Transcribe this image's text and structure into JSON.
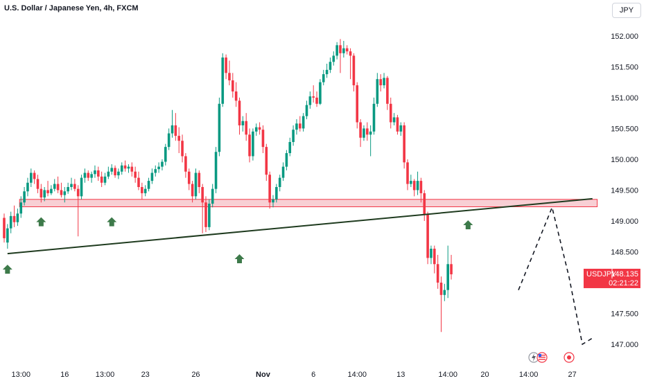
{
  "header": {
    "title": "U.S. Dollar / Japanese Yen, 4h, FXCM",
    "currency_button": "JPY"
  },
  "colors": {
    "up": "#089981",
    "down": "#f23645",
    "zone_fill": "#f7c7cc",
    "zone_stroke": "#f23645",
    "trendline": "#1e3a1e",
    "arrow": "#3d7a4a",
    "price_label_bg": "#f23645"
  },
  "chart_data": {
    "type": "candlestick",
    "title": "U.S. Dollar / Japanese Yen, 4h, FXCM",
    "ylim": [
      146.85,
      152.1
    ],
    "y_ticks": [
      "152.000",
      "151.500",
      "151.000",
      "150.500",
      "150.000",
      "149.500",
      "149.000",
      "148.500",
      "148.000",
      "147.500",
      "147.000"
    ],
    "x_ticks": [
      {
        "label": "13:00",
        "bar": 5,
        "bold": false
      },
      {
        "label": "16",
        "bar": 18,
        "bold": false
      },
      {
        "label": "13:00",
        "bar": 30,
        "bold": false
      },
      {
        "label": "23",
        "bar": 42,
        "bold": false
      },
      {
        "label": "26",
        "bar": 57,
        "bold": false
      },
      {
        "label": "Nov",
        "bar": 77,
        "bold": true
      },
      {
        "label": "6",
        "bar": 92,
        "bold": false
      },
      {
        "label": "14:00",
        "bar": 105,
        "bold": false
      },
      {
        "label": "13",
        "bar": 118,
        "bold": false
      },
      {
        "label": "14:00",
        "bar": 132,
        "bold": false
      },
      {
        "label": "20",
        "bar": 143,
        "bold": false
      },
      {
        "label": "14:00",
        "bar": 156,
        "bold": false
      },
      {
        "label": "27",
        "bar": 169,
        "bold": false
      }
    ],
    "candles": [
      [
        149.05,
        149.12,
        148.72,
        148.65
      ],
      [
        148.65,
        148.95,
        148.88,
        148.55
      ],
      [
        148.88,
        149.15,
        149.08,
        148.8
      ],
      [
        149.08,
        149.25,
        148.98,
        148.9
      ],
      [
        148.98,
        149.2,
        149.12,
        148.92
      ],
      [
        149.12,
        149.4,
        149.3,
        149.05
      ],
      [
        149.3,
        149.55,
        149.48,
        149.25
      ],
      [
        149.48,
        149.7,
        149.62,
        149.4
      ],
      [
        149.62,
        149.85,
        149.78,
        149.55
      ],
      [
        149.78,
        149.82,
        149.68,
        149.6
      ],
      [
        149.68,
        149.75,
        149.52,
        149.45
      ],
      [
        149.52,
        149.6,
        149.38,
        149.3
      ],
      [
        149.38,
        149.55,
        149.5,
        149.32
      ],
      [
        149.5,
        149.65,
        149.45,
        149.4
      ],
      [
        149.45,
        149.58,
        149.52,
        149.42
      ],
      [
        149.52,
        149.68,
        149.6,
        149.48
      ],
      [
        149.6,
        149.72,
        149.5,
        149.45
      ],
      [
        149.5,
        149.62,
        149.42,
        149.38
      ],
      [
        149.42,
        149.55,
        149.48,
        149.3
      ],
      [
        149.48,
        149.62,
        149.55,
        149.44
      ],
      [
        149.55,
        149.7,
        149.6,
        149.5
      ],
      [
        149.6,
        149.68,
        149.52,
        149.48
      ],
      [
        149.52,
        149.58,
        149.4,
        148.75
      ],
      [
        149.4,
        149.75,
        149.7,
        149.35
      ],
      [
        149.7,
        149.85,
        149.78,
        149.62
      ],
      [
        149.78,
        149.82,
        149.7,
        149.65
      ],
      [
        149.7,
        149.8,
        149.76,
        149.62
      ],
      [
        149.76,
        149.9,
        149.82,
        149.7
      ],
      [
        149.82,
        149.88,
        149.72,
        149.65
      ],
      [
        149.72,
        149.8,
        149.62,
        149.55
      ],
      [
        149.62,
        149.78,
        149.72,
        149.58
      ],
      [
        149.72,
        149.88,
        149.8,
        149.68
      ],
      [
        149.8,
        149.92,
        149.86,
        149.75
      ],
      [
        149.86,
        149.9,
        149.74,
        149.7
      ],
      [
        149.74,
        149.85,
        149.8,
        149.68
      ],
      [
        149.8,
        149.95,
        149.9,
        149.75
      ],
      [
        149.9,
        149.98,
        149.85,
        149.8
      ],
      [
        149.85,
        149.92,
        149.88,
        149.78
      ],
      [
        149.88,
        149.95,
        149.8,
        149.72
      ],
      [
        149.8,
        149.88,
        149.7,
        149.62
      ],
      [
        149.7,
        149.8,
        149.55,
        149.5
      ],
      [
        149.55,
        149.62,
        149.45,
        149.35
      ],
      [
        149.45,
        149.58,
        149.52,
        149.4
      ],
      [
        149.52,
        149.7,
        149.65,
        149.48
      ],
      [
        149.65,
        149.85,
        149.78,
        149.6
      ],
      [
        149.78,
        149.9,
        149.84,
        149.72
      ],
      [
        149.84,
        149.95,
        149.88,
        149.78
      ],
      [
        149.88,
        150.0,
        149.96,
        149.82
      ],
      [
        149.96,
        150.25,
        150.2,
        149.9
      ],
      [
        150.2,
        150.5,
        150.42,
        150.15
      ],
      [
        150.42,
        150.8,
        150.55,
        150.35
      ],
      [
        150.55,
        150.75,
        150.38,
        150.3
      ],
      [
        150.38,
        150.52,
        150.3,
        150.1
      ],
      [
        150.3,
        150.4,
        150.05,
        149.95
      ],
      [
        150.05,
        150.1,
        149.8,
        149.7
      ],
      [
        149.8,
        149.85,
        149.6,
        149.5
      ],
      [
        149.6,
        149.65,
        149.4,
        149.3
      ],
      [
        149.4,
        149.85,
        149.78,
        149.35
      ],
      [
        149.78,
        149.82,
        149.55,
        149.45
      ],
      [
        149.55,
        149.6,
        149.3,
        148.8
      ],
      [
        149.3,
        149.4,
        148.9,
        148.82
      ],
      [
        148.9,
        149.35,
        149.28,
        148.85
      ],
      [
        149.28,
        149.6,
        149.52,
        149.22
      ],
      [
        149.52,
        150.2,
        150.12,
        149.45
      ],
      [
        150.12,
        151.0,
        150.9,
        150.05
      ],
      [
        150.9,
        151.72,
        151.65,
        150.85
      ],
      [
        151.65,
        151.7,
        151.4,
        151.3
      ],
      [
        151.4,
        151.6,
        151.28,
        151.2
      ],
      [
        151.28,
        151.4,
        151.1,
        151.0
      ],
      [
        151.1,
        151.25,
        150.95,
        150.85
      ],
      [
        150.95,
        151.0,
        150.55,
        150.4
      ],
      [
        150.55,
        150.7,
        150.62,
        150.45
      ],
      [
        150.62,
        150.75,
        150.4,
        150.3
      ],
      [
        150.4,
        150.5,
        150.05,
        149.95
      ],
      [
        150.05,
        150.5,
        150.45,
        149.98
      ],
      [
        150.45,
        150.58,
        150.52,
        150.38
      ],
      [
        150.52,
        150.6,
        150.48,
        150.4
      ],
      [
        150.48,
        150.55,
        150.2,
        150.1
      ],
      [
        150.2,
        150.25,
        149.75,
        149.65
      ],
      [
        149.75,
        149.8,
        149.3,
        149.2
      ],
      [
        149.3,
        149.42,
        149.35,
        149.22
      ],
      [
        149.35,
        149.6,
        149.55,
        149.3
      ],
      [
        149.55,
        149.75,
        149.7,
        149.48
      ],
      [
        149.7,
        149.95,
        149.88,
        149.65
      ],
      [
        149.88,
        150.15,
        150.1,
        149.82
      ],
      [
        150.1,
        150.35,
        150.28,
        150.05
      ],
      [
        150.28,
        150.55,
        150.48,
        150.22
      ],
      [
        150.48,
        150.65,
        150.58,
        150.4
      ],
      [
        150.58,
        150.7,
        150.5,
        150.45
      ],
      [
        150.5,
        150.75,
        150.7,
        150.45
      ],
      [
        150.7,
        150.95,
        150.88,
        150.65
      ],
      [
        150.88,
        151.1,
        151.02,
        150.82
      ],
      [
        151.02,
        151.2,
        151.0,
        150.92
      ],
      [
        151.0,
        151.1,
        150.9,
        150.85
      ],
      [
        150.9,
        151.3,
        151.25,
        150.88
      ],
      [
        151.25,
        151.45,
        151.38,
        151.2
      ],
      [
        151.38,
        151.55,
        151.45,
        151.32
      ],
      [
        151.45,
        151.65,
        151.58,
        151.4
      ],
      [
        151.58,
        151.75,
        151.68,
        151.52
      ],
      [
        151.68,
        151.9,
        151.85,
        151.62
      ],
      [
        151.85,
        151.95,
        151.72,
        151.4
      ],
      [
        151.72,
        151.92,
        151.8,
        151.65
      ],
      [
        151.8,
        151.85,
        151.75,
        151.7
      ],
      [
        151.75,
        151.8,
        151.68,
        151.3
      ],
      [
        151.68,
        151.72,
        151.2,
        151.1
      ],
      [
        151.2,
        151.25,
        150.6,
        150.5
      ],
      [
        150.6,
        150.65,
        150.35,
        150.2
      ],
      [
        150.35,
        150.55,
        150.5,
        150.3
      ],
      [
        150.5,
        150.6,
        150.4,
        150.3
      ],
      [
        150.4,
        150.55,
        150.45,
        150.05
      ],
      [
        150.45,
        151.0,
        150.9,
        150.4
      ],
      [
        150.9,
        151.4,
        151.3,
        150.85
      ],
      [
        151.3,
        151.38,
        151.2,
        151.1
      ],
      [
        151.2,
        151.4,
        151.32,
        151.15
      ],
      [
        151.32,
        151.35,
        150.9,
        150.8
      ],
      [
        150.9,
        151.0,
        150.6,
        150.5
      ],
      [
        150.6,
        150.75,
        150.68,
        150.55
      ],
      [
        150.68,
        150.72,
        150.45,
        150.4
      ],
      [
        150.45,
        150.6,
        150.55,
        150.38
      ],
      [
        150.55,
        150.6,
        149.95,
        149.85
      ],
      [
        149.95,
        150.0,
        149.6,
        149.5
      ],
      [
        149.6,
        149.75,
        149.65,
        149.55
      ],
      [
        149.65,
        149.68,
        149.5,
        149.4
      ],
      [
        149.5,
        149.8,
        149.65,
        149.42
      ],
      [
        149.65,
        149.7,
        149.45,
        149.3
      ],
      [
        149.45,
        149.5,
        149.1,
        149.0
      ],
      [
        149.1,
        149.15,
        148.4,
        148.3
      ],
      [
        148.4,
        148.6,
        148.55,
        148.3
      ],
      [
        148.55,
        148.6,
        148.3,
        148.15
      ],
      [
        148.3,
        148.45,
        148.0,
        147.9
      ],
      [
        148.0,
        148.1,
        147.8,
        147.2
      ],
      [
        147.8,
        147.98,
        147.88,
        147.7
      ],
      [
        147.88,
        148.6,
        148.3,
        147.75
      ],
      [
        148.3,
        148.45,
        148.135,
        148.05
      ]
    ],
    "zone": {
      "from_bar": 5,
      "to_bar": 176,
      "low": 149.23,
      "high": 149.35
    },
    "trendline": {
      "from": [
        1,
        148.47
      ],
      "to": [
        175,
        149.36
      ]
    },
    "projection": [
      [
        153,
        147.88
      ],
      [
        158,
        148.55
      ],
      [
        163,
        149.22
      ],
      [
        168,
        148.1
      ],
      [
        172,
        147.0
      ],
      [
        175,
        147.1
      ]
    ],
    "arrows": [
      [
        1,
        148.38
      ],
      [
        11,
        149.15
      ],
      [
        32,
        149.15
      ],
      [
        70,
        148.55
      ],
      [
        138,
        149.1
      ]
    ],
    "price_label": {
      "symbol": "USDJPY",
      "price": "148.135",
      "countdown": "02:21:22"
    }
  }
}
